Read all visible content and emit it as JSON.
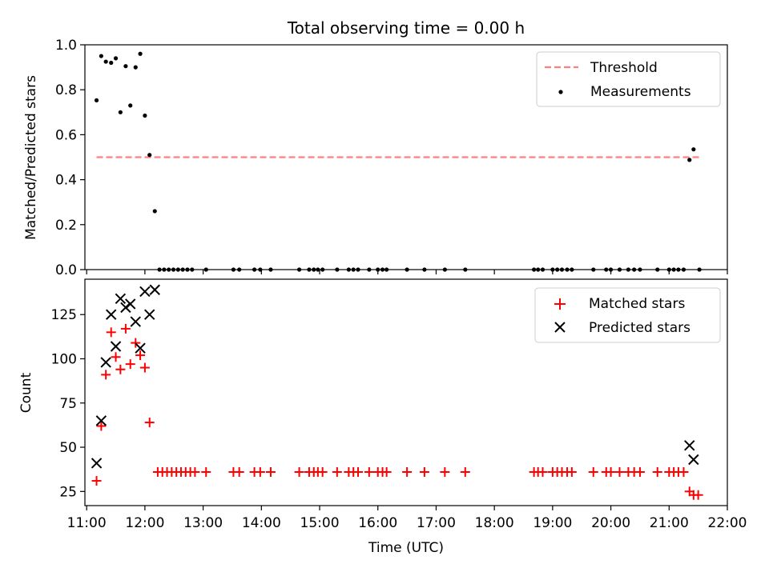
{
  "chart_data": {
    "title": "Total observing time = 0.00 h",
    "x_axis": {
      "label": "Time (UTC)",
      "range_hours": [
        10.97,
        22.0
      ],
      "ticks": [
        {
          "v": 11,
          "label": "11:00"
        },
        {
          "v": 12,
          "label": "12:00"
        },
        {
          "v": 13,
          "label": "13:00"
        },
        {
          "v": 14,
          "label": "14:00"
        },
        {
          "v": 15,
          "label": "15:00"
        },
        {
          "v": 16,
          "label": "16:00"
        },
        {
          "v": 17,
          "label": "17:00"
        },
        {
          "v": 18,
          "label": "18:00"
        },
        {
          "v": 19,
          "label": "19:00"
        },
        {
          "v": 20,
          "label": "20:00"
        },
        {
          "v": 21,
          "label": "21:00"
        },
        {
          "v": 22,
          "label": "22:00"
        }
      ]
    },
    "top_panel": {
      "type": "scatter",
      "ylabel": "Matched/Predicted stars",
      "ylim": [
        0,
        1.0
      ],
      "yticks": [
        {
          "v": 0.0,
          "label": "0.0"
        },
        {
          "v": 0.2,
          "label": "0.2"
        },
        {
          "v": 0.4,
          "label": "0.4"
        },
        {
          "v": 0.6,
          "label": "0.6"
        },
        {
          "v": 0.8,
          "label": "0.8"
        },
        {
          "v": 1.0,
          "label": "1.0"
        }
      ],
      "threshold": {
        "name": "Threshold",
        "y": 0.5,
        "x_range": [
          11.17,
          21.52
        ],
        "color": "#ff7f7f"
      },
      "measurements": {
        "name": "Measurements",
        "color": "#000000",
        "x": [
          11.17,
          11.25,
          11.33,
          11.42,
          11.5,
          11.58,
          11.67,
          11.75,
          11.84,
          11.92,
          12.0,
          12.08,
          12.17,
          12.25,
          12.33,
          12.41,
          12.49,
          12.57,
          12.65,
          12.73,
          12.81,
          13.05,
          13.52,
          13.62,
          13.88,
          13.98,
          14.16,
          14.65,
          14.82,
          14.9,
          14.97,
          15.05,
          15.3,
          15.5,
          15.58,
          15.66,
          15.85,
          16.0,
          16.08,
          16.15,
          16.5,
          16.8,
          17.15,
          17.5,
          18.68,
          18.75,
          18.83,
          19.0,
          19.08,
          19.16,
          19.25,
          19.33,
          19.7,
          19.92,
          20.0,
          20.15,
          20.3,
          20.4,
          20.5,
          20.8,
          21.0,
          21.08,
          21.16,
          21.25,
          21.35,
          21.42,
          21.52
        ],
        "y": [
          0.753,
          0.95,
          0.925,
          0.92,
          0.94,
          0.7,
          0.905,
          0.73,
          0.9,
          0.96,
          0.685,
          0.51,
          0.26,
          0,
          0,
          0,
          0,
          0,
          0,
          0,
          0,
          0,
          0,
          0,
          0,
          0,
          0,
          0,
          0,
          0,
          0,
          0,
          0,
          0,
          0,
          0,
          0,
          0,
          0,
          0,
          0,
          0,
          0,
          0,
          0,
          0,
          0,
          0,
          0,
          0,
          0,
          0,
          0,
          0,
          0,
          0,
          0,
          0,
          0,
          0,
          0,
          0,
          0,
          0,
          0.488,
          0.535,
          0
        ]
      },
      "legend": {
        "placement": "top-right"
      }
    },
    "bottom_panel": {
      "type": "scatter",
      "ylabel": "Count",
      "ylim": [
        17,
        145
      ],
      "yticks": [
        {
          "v": 25,
          "label": "25"
        },
        {
          "v": 50,
          "label": "50"
        },
        {
          "v": 75,
          "label": "75"
        },
        {
          "v": 100,
          "label": "100"
        },
        {
          "v": 125,
          "label": "125"
        }
      ],
      "series": [
        {
          "name": "Matched stars",
          "marker": "plus",
          "color": "#ff0000",
          "x": [
            11.17,
            11.25,
            11.33,
            11.42,
            11.5,
            11.58,
            11.67,
            11.75,
            11.84,
            11.92,
            12.0,
            12.08,
            12.22,
            12.3,
            12.38,
            12.46,
            12.54,
            12.62,
            12.7,
            12.78,
            12.86,
            13.05,
            13.52,
            13.62,
            13.88,
            13.98,
            14.16,
            14.65,
            14.82,
            14.9,
            14.97,
            15.05,
            15.3,
            15.5,
            15.58,
            15.66,
            15.85,
            16.0,
            16.08,
            16.15,
            16.5,
            16.8,
            17.15,
            17.5,
            18.68,
            18.75,
            18.83,
            19.0,
            19.08,
            19.16,
            19.25,
            19.33,
            19.7,
            19.92,
            20.0,
            20.15,
            20.3,
            20.4,
            20.5,
            20.8,
            21.0,
            21.08,
            21.16,
            21.25,
            21.35,
            21.42,
            21.5
          ],
          "y": [
            31,
            62,
            91,
            115,
            101,
            94,
            117,
            97,
            109,
            102,
            95,
            64,
            36,
            36,
            36,
            36,
            36,
            36,
            36,
            36,
            36,
            36,
            36,
            36,
            36,
            36,
            36,
            36,
            36,
            36,
            36,
            36,
            36,
            36,
            36,
            36,
            36,
            36,
            36,
            36,
            36,
            36,
            36,
            36,
            36,
            36,
            36,
            36,
            36,
            36,
            36,
            36,
            36,
            36,
            36,
            36,
            36,
            36,
            36,
            36,
            36,
            36,
            36,
            36,
            25,
            23,
            23
          ]
        },
        {
          "name": "Predicted stars",
          "marker": "cross",
          "color": "#000000",
          "x": [
            11.17,
            11.25,
            11.33,
            11.42,
            11.5,
            11.58,
            11.67,
            11.75,
            11.84,
            11.92,
            12.0,
            12.08,
            12.17,
            21.35,
            21.42
          ],
          "y": [
            41,
            65,
            98,
            125,
            107,
            134,
            129,
            131,
            121,
            106,
            138,
            125,
            139,
            51,
            43
          ]
        }
      ],
      "legend": {
        "placement": "top-right"
      }
    }
  }
}
